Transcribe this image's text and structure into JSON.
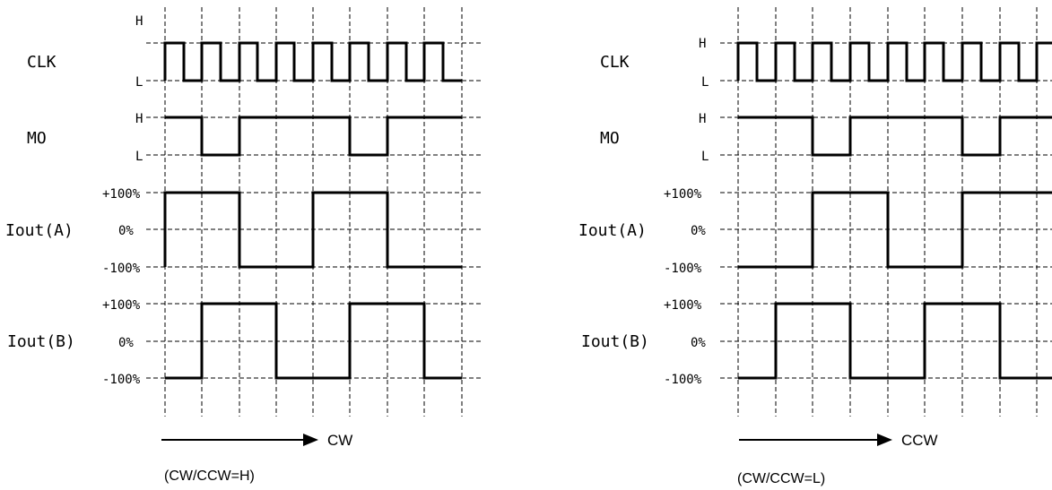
{
  "diagrams": [
    {
      "signal_labels": [
        "CLK",
        "MO",
        "Iout(A)",
        "Iout(B)"
      ],
      "level_labels": {
        "clk_high": "H",
        "clk_low": "L",
        "mo_high": "H",
        "mo_low": "L",
        "a_pos": "+100%",
        "a_zero": "0%",
        "a_neg": "-100%",
        "b_pos": "+100%",
        "b_zero": "0%",
        "b_neg": "-100%"
      },
      "direction": "CW",
      "caption": "(CW/CCW=H)",
      "waveforms": {
        "clk": "square, 8 full cycles",
        "mo_low_intervals": [
          [
            1,
            2
          ],
          [
            5,
            6
          ]
        ],
        "iout_a": [
          "-100%",
          "+100%",
          "+100%",
          "-100%",
          "-100%",
          "+100%",
          "+100%",
          "-100%",
          "-100%"
        ],
        "iout_b": [
          "-100%",
          "+100%",
          "+100%",
          "+100%",
          "-100%",
          "-100%",
          "+100%",
          "+100%",
          "+100%",
          "-100%"
        ]
      }
    },
    {
      "signal_labels": [
        "CLK",
        "MO",
        "Iout(A)",
        "Iout(B)"
      ],
      "level_labels": {
        "clk_high": "H",
        "clk_low": "L",
        "mo_high": "H",
        "mo_low": "L",
        "a_pos": "+100%",
        "a_zero": "0%",
        "a_neg": "-100%",
        "b_pos": "+100%",
        "b_zero": "0%",
        "b_neg": "-100%"
      },
      "direction": "CCW",
      "caption": "(CW/CCW=L)",
      "waveforms": {
        "clk": "square, 8.5 cycles",
        "mo_low_intervals": [
          [
            2,
            3
          ],
          [
            6,
            7
          ]
        ]
      }
    }
  ]
}
